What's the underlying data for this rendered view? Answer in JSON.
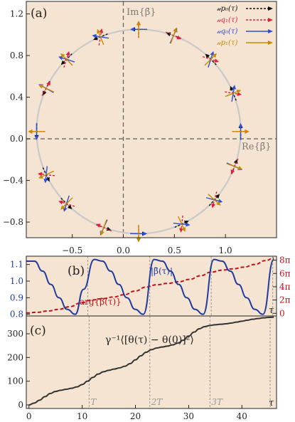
{
  "colors": {
    "panel_bg": "#f6e4d2",
    "black_arrow": "#111111",
    "red_arrow": "#e0203a",
    "blue_arrow": "#2b4fd6",
    "gold_arrow": "#c98a00",
    "circle": "#c9c9c9",
    "abs_curve": "#1f3b9e",
    "arg_curve": "#c0101a",
    "msd_curve": "#333333"
  },
  "chart_data": [
    {
      "panel_label": "(a)",
      "type": "scatter",
      "xlabel": "Re{β̄}",
      "ylabel": "Im{β̄}",
      "xlim": [
        -0.95,
        1.5
      ],
      "ylim": [
        -0.95,
        1.32
      ],
      "x_ticks": [
        -0.5,
        0.0,
        0.5,
        1.0
      ],
      "x_tick_labels": [
        "−0.5",
        "0.0",
        "0.5",
        "1.0"
      ],
      "y_ticks": [
        -0.8,
        -0.4,
        0.0,
        0.4,
        0.8,
        1.2
      ],
      "y_tick_labels": [
        "−0.8",
        "−0.4",
        "0.0",
        "0.4",
        "0.8",
        "1.2"
      ],
      "circle": {
        "center": [
          0.15,
          0.07
        ],
        "radius": 0.99
      },
      "legend": [
        "𝓊p₀(τ)",
        "𝓊q₁(τ)",
        "𝓊q₀(τ)",
        "𝓊p₁(τ)"
      ],
      "series": [
        {
          "name": "𝓊p₀(τ)",
          "style": "dashed",
          "color_key": "black_arrow"
        },
        {
          "name": "𝓊q₁(τ)",
          "style": "dashed",
          "color_key": "red_arrow"
        },
        {
          "name": "𝓊q₀(τ)",
          "style": "solid",
          "color_key": "blue_arrow"
        },
        {
          "name": "𝓊p₁(τ)",
          "style": "solid",
          "color_key": "gold_arrow"
        }
      ],
      "sample_angles_deg": [
        90,
        112,
        135,
        155,
        180,
        205,
        225,
        250,
        270,
        295,
        318,
        340,
        0,
        22,
        45,
        70
      ]
    },
    {
      "panel_label": "(b)",
      "type": "line",
      "xlim": [
        0,
        46
      ],
      "left_ylim": [
        0.79,
        1.15
      ],
      "left_ticks": [
        0.8,
        0.9,
        1.0,
        1.1
      ],
      "left_tick_labels": [
        "0.8",
        "0.9",
        "1.0",
        "1.1"
      ],
      "right_ticks": [
        0,
        2,
        4,
        6,
        8
      ],
      "right_tick_labels": [
        "0",
        "2π",
        "4π",
        "6π",
        "8π"
      ],
      "right_ylim": [
        -0.4,
        8.6
      ],
      "series": [
        {
          "name": "|β̄(τ)|",
          "x": [
            0,
            1.5,
            3,
            4.5,
            6,
            7.5,
            9,
            10.5,
            12.5,
            14,
            15.5,
            17,
            18.5,
            20,
            21.5,
            23.5,
            25,
            26.5,
            28,
            29.5,
            31,
            32.5,
            34.5,
            36,
            37.5,
            39,
            40.5,
            42,
            43.5,
            45.5
          ],
          "values": [
            1.12,
            1.12,
            1.06,
            0.98,
            0.9,
            0.83,
            0.8,
            0.95,
            1.13,
            1.12,
            1.06,
            0.98,
            0.9,
            0.83,
            0.8,
            1.13,
            1.12,
            1.06,
            0.98,
            0.9,
            0.83,
            0.8,
            1.13,
            1.12,
            1.06,
            0.98,
            0.9,
            0.83,
            0.8,
            1.13
          ]
        },
        {
          "name": "arg{β̄(τ)}",
          "axis": "right",
          "x": [
            0,
            2,
            4,
            6,
            8,
            10,
            12,
            14,
            16,
            18,
            20,
            22,
            24,
            26,
            28,
            30,
            32,
            34,
            36,
            38,
            40,
            42,
            44,
            45.5
          ],
          "values": [
            0.05,
            0.15,
            0.35,
            0.6,
            1.0,
            1.55,
            2.0,
            2.2,
            2.45,
            2.8,
            3.35,
            3.95,
            4.3,
            4.5,
            4.75,
            5.1,
            5.65,
            6.2,
            6.5,
            6.7,
            6.95,
            7.35,
            7.95,
            8.3
          ]
        }
      ],
      "period_x": [
        11.3,
        22.7,
        34.0,
        45.3
      ]
    },
    {
      "panel_label": "(c)",
      "type": "line",
      "xlim": [
        -0.5,
        46.5
      ],
      "ylim": [
        -15,
        375
      ],
      "x_ticks": [
        0,
        10,
        20,
        30,
        40
      ],
      "x_tick_labels": [
        "0",
        "10",
        "20",
        "30",
        "40"
      ],
      "y_ticks": [
        0,
        100,
        200,
        300
      ],
      "y_tick_labels": [
        "0",
        "100",
        "200",
        "300"
      ],
      "series": [
        {
          "name": "γ⁻¹⟨[θ(τ) − θ(0)]²⟩",
          "x": [
            0,
            1,
            2,
            3,
            4,
            5,
            6,
            7,
            8,
            9,
            10,
            11,
            12,
            13,
            14,
            15,
            16,
            17,
            18,
            19,
            20,
            21,
            22,
            23,
            24,
            25,
            26,
            27,
            28,
            29,
            30,
            31,
            32,
            33,
            34,
            35,
            36,
            37,
            38,
            39,
            40,
            41,
            42,
            43,
            44,
            45,
            46
          ],
          "values": [
            0,
            8,
            20,
            35,
            48,
            57,
            62,
            66,
            70,
            76,
            86,
            100,
            116,
            130,
            140,
            146,
            151,
            156,
            163,
            174,
            190,
            207,
            222,
            233,
            240,
            244,
            248,
            253,
            261,
            273,
            290,
            307,
            321,
            330,
            335,
            338,
            340,
            342,
            345,
            349,
            353,
            357,
            361,
            364,
            367,
            369,
            370
          ]
        }
      ],
      "period_x": [
        11.3,
        22.7,
        34.0,
        45.3
      ],
      "period_labels": [
        "T",
        "2T",
        "3T",
        ""
      ]
    }
  ],
  "axis_symbols": {
    "tau": "τ"
  }
}
